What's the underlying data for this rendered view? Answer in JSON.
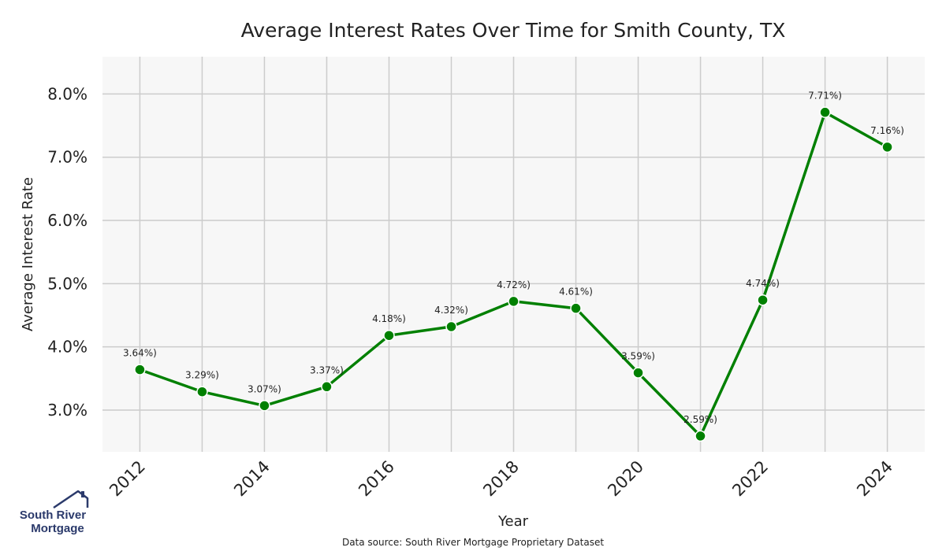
{
  "chart_data": {
    "type": "line",
    "title": "Average Interest Rates Over Time for Smith County, TX",
    "xlabel": "Year",
    "ylabel": "Average Interest Rate",
    "x": [
      2012,
      2013,
      2014,
      2015,
      2016,
      2017,
      2018,
      2019,
      2020,
      2021,
      2022,
      2023,
      2024
    ],
    "values": [
      3.64,
      3.29,
      3.07,
      3.37,
      4.18,
      4.32,
      4.72,
      4.61,
      3.59,
      2.59,
      4.74,
      7.71,
      7.16
    ],
    "point_labels": [
      "3.64%)",
      "3.29%)",
      "3.07%)",
      "3.37%)",
      "4.18%)",
      "4.32%)",
      "4.72%)",
      "4.61%)",
      "3.59%)",
      "2.59%)",
      "4.74%)",
      "7.71%)",
      "7.16%)"
    ],
    "x_ticks": [
      2012,
      2014,
      2016,
      2018,
      2020,
      2022,
      2024
    ],
    "x_tick_labels": [
      "2012",
      "2014",
      "2016",
      "2018",
      "2020",
      "2022",
      "2024"
    ],
    "y_ticks": [
      3.0,
      4.0,
      5.0,
      6.0,
      7.0,
      8.0
    ],
    "y_tick_labels": [
      "3.0%",
      "4.0%",
      "5.0%",
      "6.0%",
      "7.0%",
      "8.0%"
    ],
    "xlim": [
      2011.4,
      2024.6
    ],
    "ylim": [
      2.34,
      8.59
    ],
    "grid": true,
    "line_color": "#008000",
    "background_color": "#f7f7f7",
    "grid_color": "#cccccc"
  },
  "footer": {
    "source": "Data source: South River Mortgage Proprietary Dataset"
  },
  "logo": {
    "line1": "South River",
    "line2": "Mortgage",
    "color": "#2b3a6b"
  }
}
